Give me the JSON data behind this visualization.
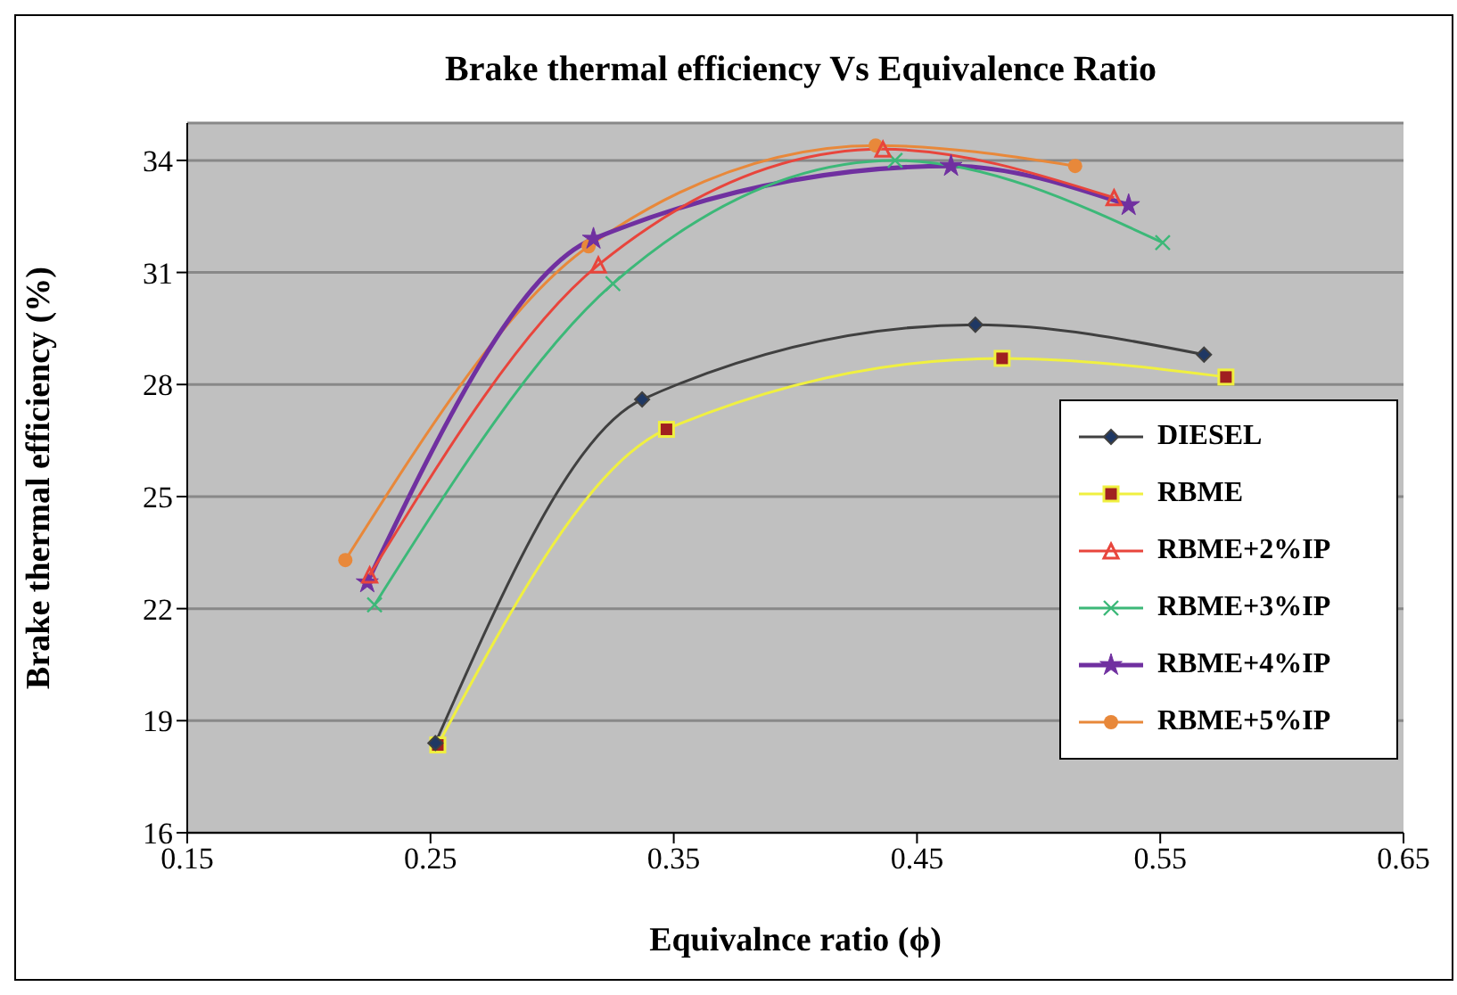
{
  "chart_data": {
    "type": "line",
    "title": "Brake thermal efficiency Vs  Equivalence Ratio",
    "xlabel": "Equivalnce ratio (ϕ)",
    "ylabel": "Brake thermal efficiency  (%)",
    "xlim": [
      0.15,
      0.65
    ],
    "xticks": [
      0.15,
      0.25,
      0.35,
      0.45,
      0.55,
      0.65
    ],
    "ylim": [
      16,
      35
    ],
    "yticks": [
      16,
      19,
      22,
      25,
      28,
      31,
      34
    ],
    "grid": "y",
    "legend": "right",
    "series": [
      {
        "name": "DIESEL",
        "color": "#404040",
        "marker": "diamond",
        "x": [
          0.252,
          0.337,
          0.474,
          0.568
        ],
        "values": [
          18.4,
          27.6,
          29.6,
          28.8
        ]
      },
      {
        "name": "RBME",
        "color": "#f0f040",
        "marker": "square",
        "x": [
          0.253,
          0.347,
          0.485,
          0.577
        ],
        "values": [
          18.35,
          26.8,
          28.7,
          28.2
        ]
      },
      {
        "name": "RBME+2%IP",
        "color": "#e8453c",
        "marker": "triangle",
        "x": [
          0.225,
          0.319,
          0.436,
          0.531
        ],
        "values": [
          22.9,
          31.2,
          34.3,
          33.0
        ]
      },
      {
        "name": "RBME+3%IP",
        "color": "#3cb878",
        "marker": "cross",
        "x": [
          0.227,
          0.325,
          0.441,
          0.551
        ],
        "values": [
          22.1,
          30.7,
          34.0,
          31.8
        ]
      },
      {
        "name": "RBME+4%IP",
        "color": "#7030a0",
        "marker": "star",
        "x": [
          0.224,
          0.317,
          0.464,
          0.537
        ],
        "values": [
          22.7,
          31.9,
          33.85,
          32.8
        ]
      },
      {
        "name": "RBME+5%IP",
        "color": "#e8883a",
        "marker": "circle",
        "x": [
          0.215,
          0.315,
          0.433,
          0.515
        ],
        "values": [
          23.3,
          31.7,
          34.4,
          33.85
        ]
      }
    ]
  }
}
